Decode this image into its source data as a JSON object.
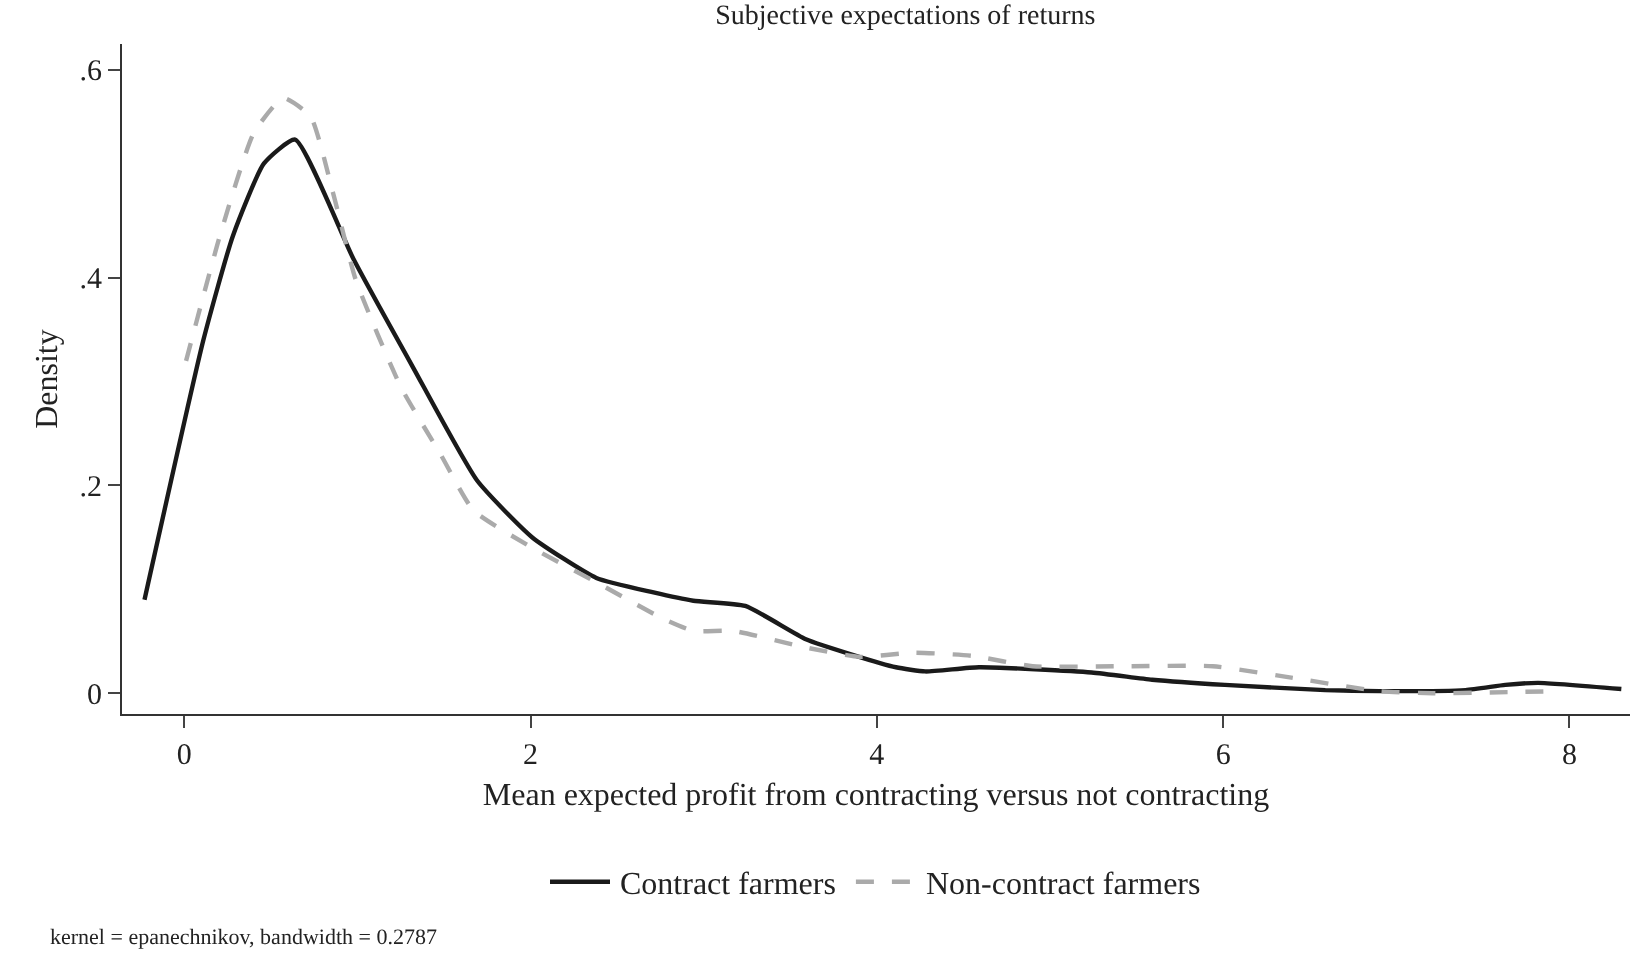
{
  "chart_data": {
    "type": "line",
    "title": "Subjective expectations of returns",
    "xlabel": "Mean expected profit from contracting versus not contracting",
    "ylabel": "Density",
    "xlim": [
      -0.36,
      8.35
    ],
    "xticks": [
      0,
      2,
      4,
      6,
      8
    ],
    "ylim": [
      -0.02,
      0.625
    ],
    "yticks": [
      {
        "value": 0,
        "label": "0"
      },
      {
        "value": 0.2,
        "label": ".2"
      },
      {
        "value": 0.4,
        "label": ".4"
      },
      {
        "value": 0.6,
        "label": ".6"
      }
    ],
    "grid": false,
    "legend": "bottom",
    "marker": "none",
    "annotations": [
      "kernel = epanechnikov, bandwidth = 0.2787"
    ],
    "series": [
      {
        "name": "Contract farmers",
        "color": "#1a1a1a",
        "line_style": "solid",
        "x": [
          -0.23,
          0.11,
          0.28,
          0.46,
          0.64,
          0.98,
          1.32,
          1.69,
          2.01,
          2.38,
          2.71,
          2.94,
          3.24,
          3.59,
          3.86,
          4.11,
          4.28,
          4.59,
          5.24,
          5.59,
          6.01,
          6.59,
          6.9,
          7.4,
          7.63,
          7.82,
          8.3
        ],
        "values": [
          0.09,
          0.34,
          0.44,
          0.51,
          0.533,
          0.417,
          0.314,
          0.205,
          0.15,
          0.111,
          0.097,
          0.089,
          0.084,
          0.052,
          0.037,
          0.025,
          0.021,
          0.025,
          0.02,
          0.013,
          0.008,
          0.003,
          0.002,
          0.003,
          0.008,
          0.01,
          0.004
        ]
      },
      {
        "name": "Non-contract farmers",
        "color": "#aaaaaa",
        "line_style": "dashed",
        "x": [
          0.01,
          0.21,
          0.4,
          0.57,
          0.73,
          0.86,
          0.99,
          1.25,
          1.48,
          1.67,
          2.01,
          2.4,
          2.75,
          2.94,
          3.17,
          3.59,
          3.9,
          4.21,
          4.55,
          4.9,
          5.44,
          5.94,
          6.32,
          6.9,
          7.21,
          7.94
        ],
        "values": [
          0.32,
          0.443,
          0.539,
          0.573,
          0.555,
          0.481,
          0.398,
          0.295,
          0.23,
          0.176,
          0.14,
          0.105,
          0.073,
          0.06,
          0.06,
          0.044,
          0.035,
          0.039,
          0.036,
          0.026,
          0.026,
          0.026,
          0.017,
          0.002,
          0.0,
          0.002
        ]
      }
    ]
  }
}
